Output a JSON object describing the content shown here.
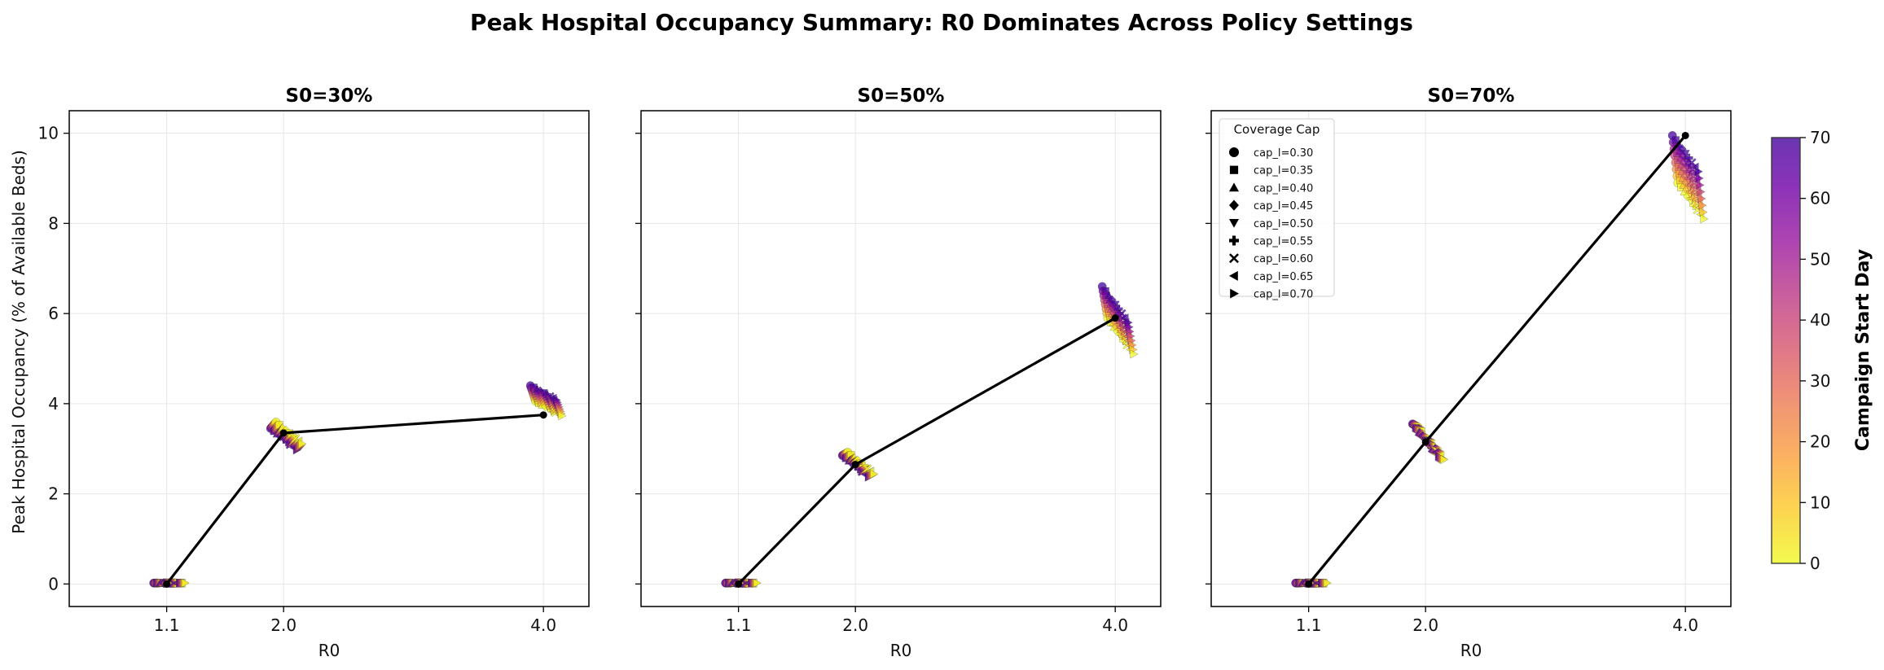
{
  "title": "Peak Hospital Occupancy Summary: R0 Dominates Across Policy Settings",
  "ylabel": "Peak Hospital Occupancy (% of Available Beds)",
  "xlabel": "R0",
  "colorbar": {
    "label": "Campaign Start Day",
    "min": 0,
    "max": 70,
    "ticks": [
      "0",
      "10",
      "20",
      "30",
      "40",
      "50",
      "60",
      "70"
    ],
    "colormap": "plasma_r"
  },
  "legend": {
    "title": "Coverage Cap",
    "entries": [
      "cap_l=0.30",
      "cap_l=0.35",
      "cap_l=0.40",
      "cap_l=0.45",
      "cap_l=0.50",
      "cap_l=0.55",
      "cap_l=0.60",
      "cap_l=0.65",
      "cap_l=0.70"
    ],
    "markers": [
      "circle",
      "square",
      "triangle-up",
      "diamond",
      "triangle-down",
      "plus",
      "x",
      "triangle-left",
      "triangle-right"
    ],
    "placement": "upper-left of third panel"
  },
  "chart_data": {
    "type": "scatter",
    "x_categories": [
      "1.1",
      "2.0",
      "4.0"
    ],
    "y_ticks": [
      "0",
      "2",
      "4",
      "6",
      "8",
      "10"
    ],
    "ylim": [
      -0.5,
      10.5
    ],
    "grid": true,
    "start_days": [
      0,
      10,
      20,
      30,
      40,
      50,
      60,
      70
    ],
    "panels": [
      {
        "title": "S0=30%",
        "mean_line": [
          [
            1.1,
            0.0
          ],
          [
            2.0,
            3.35
          ],
          [
            4.0,
            3.75
          ]
        ],
        "clusters": [
          {
            "r0": "1.1",
            "peak_at_day70": 0.02,
            "day_effect_per_10": 0.0,
            "cap_effect_per_step": 0.0
          },
          {
            "r0": "2.0",
            "peak_at_day70": 3.45,
            "day_effect_per_10": 0.02,
            "cap_effect_per_step": -0.06
          },
          {
            "r0": "4.0",
            "peak_at_day70": 4.4,
            "day_effect_per_10": -0.05,
            "cap_effect_per_step": -0.04
          }
        ]
      },
      {
        "title": "S0=50%",
        "mean_line": [
          [
            1.1,
            0.0
          ],
          [
            2.0,
            2.65
          ],
          [
            4.0,
            5.9
          ]
        ],
        "clusters": [
          {
            "r0": "1.1",
            "peak_at_day70": 0.02,
            "day_effect_per_10": 0.0,
            "cap_effect_per_step": 0.0
          },
          {
            "r0": "2.0",
            "peak_at_day70": 2.85,
            "day_effect_per_10": 0.01,
            "cap_effect_per_step": -0.06
          },
          {
            "r0": "4.0",
            "peak_at_day70": 6.6,
            "day_effect_per_10": -0.1,
            "cap_effect_per_step": -0.1
          }
        ]
      },
      {
        "title": "S0=70%",
        "mean_line": [
          [
            1.1,
            0.0
          ],
          [
            2.0,
            3.15
          ],
          [
            4.0,
            9.95
          ]
        ],
        "clusters": [
          {
            "r0": "1.1",
            "peak_at_day70": 0.02,
            "day_effect_per_10": 0.0,
            "cap_effect_per_step": 0.0
          },
          {
            "r0": "2.0",
            "peak_at_day70": 3.55,
            "day_effect_per_10": -0.01,
            "cap_effect_per_step": -0.09
          },
          {
            "r0": "4.0",
            "peak_at_day70": 9.95,
            "day_effect_per_10": -0.15,
            "cap_effect_per_step": -0.1
          }
        ]
      }
    ]
  }
}
